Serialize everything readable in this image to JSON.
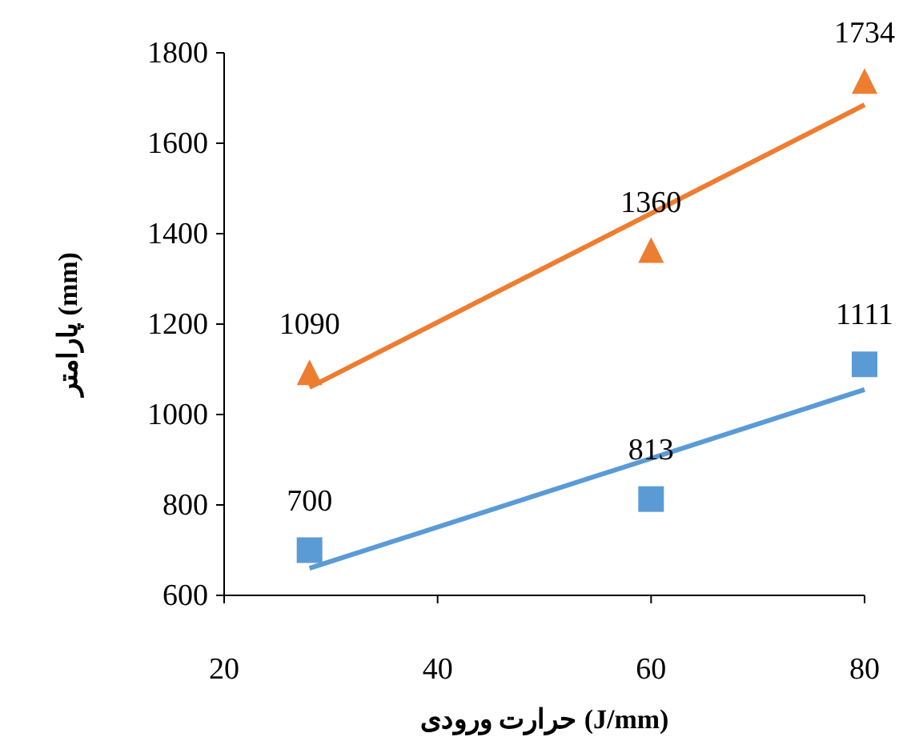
{
  "chart_data": {
    "type": "scatter",
    "xlabel": "حرارت ورودی (J/mm)",
    "ylabel": "پارامتر (mm)",
    "xlim": [
      20,
      80
    ],
    "xticks": [
      20,
      40,
      60,
      80
    ],
    "ylim": [
      600,
      1800
    ],
    "yticks": [
      600,
      800,
      1000,
      1200,
      1400,
      1600,
      1800
    ],
    "grid": false,
    "series": [
      {
        "color": "#ed7d31",
        "marker": "triangle",
        "x": [
          28,
          60,
          80
        ],
        "values": [
          1090,
          1360,
          1734
        ],
        "value_labels": [
          "1090",
          "1360",
          "1734"
        ]
      },
      {
        "color": "#5b9bd5",
        "marker": "square",
        "x": [
          28,
          60,
          80
        ],
        "values": [
          700,
          813,
          1111
        ],
        "value_labels": [
          "700",
          "813",
          "1111"
        ]
      },
      {
        "type": "line",
        "color": "#ed7d31",
        "x": [
          28,
          80
        ],
        "values": [
          1060,
          1685
        ]
      },
      {
        "type": "line",
        "color": "#5b9bd5",
        "x": [
          28,
          80
        ],
        "values": [
          660,
          1055
        ]
      }
    ]
  }
}
